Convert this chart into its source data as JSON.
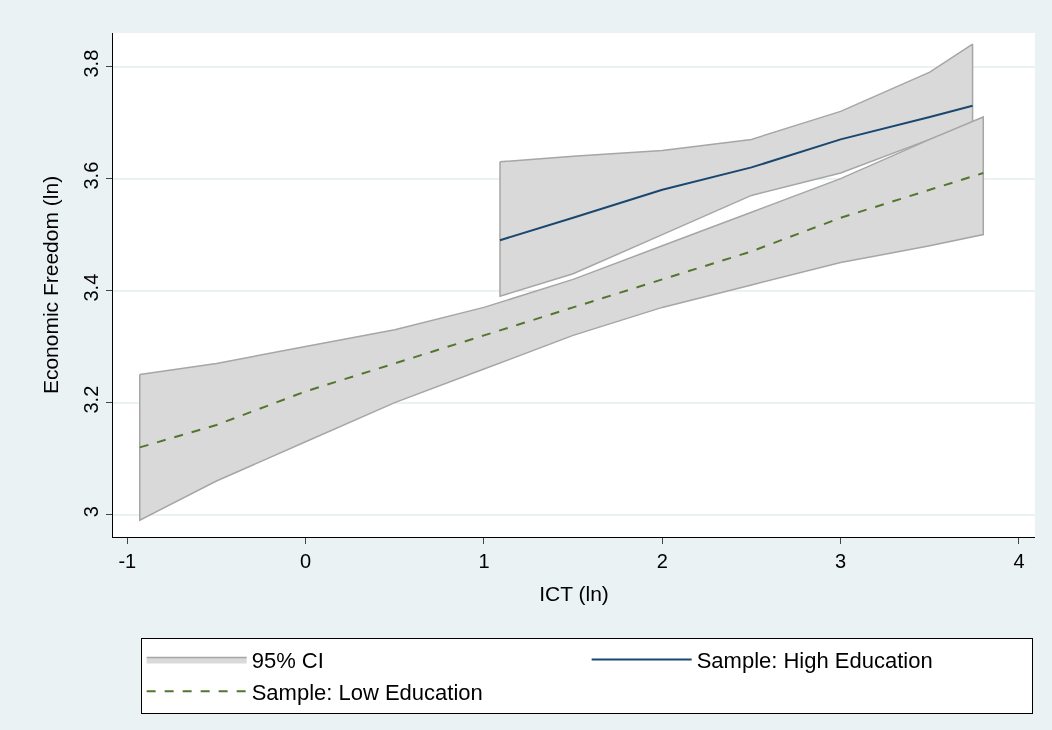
{
  "chart_data": {
    "type": "line",
    "xlabel": "ICT (ln)",
    "ylabel": "Economic Freedom (ln)",
    "xlim": [
      -1.08,
      4.09
    ],
    "ylim": [
      2.96,
      3.86
    ],
    "xticks": [
      -1,
      0,
      1,
      2,
      3,
      4
    ],
    "yticks": [
      3,
      3.2,
      3.4,
      3.6,
      3.8
    ],
    "grid": "y",
    "legend": "bottom",
    "annotations": [
      "95% CI"
    ],
    "series": [
      {
        "name": "Sample: High Education",
        "color": "#1a476f",
        "line_style": "solid",
        "x": [
          1.09,
          1.5,
          2,
          2.5,
          3,
          3.5,
          3.74
        ],
        "values": [
          3.49,
          3.53,
          3.58,
          3.62,
          3.67,
          3.71,
          3.73
        ],
        "lower": [
          3.39,
          3.43,
          3.5,
          3.57,
          3.61,
          3.67,
          3.7
        ],
        "upper": [
          3.63,
          3.64,
          3.65,
          3.67,
          3.72,
          3.79,
          3.84
        ]
      },
      {
        "name": "Sample: Low Education",
        "color": "#55752f",
        "line_style": "dashed",
        "x": [
          -0.93,
          -0.5,
          0,
          0.5,
          1,
          1.5,
          2,
          2.5,
          3,
          3.5,
          3.8
        ],
        "values": [
          3.12,
          3.16,
          3.22,
          3.27,
          3.32,
          3.37,
          3.42,
          3.47,
          3.53,
          3.58,
          3.61
        ],
        "lower": [
          2.99,
          3.06,
          3.13,
          3.2,
          3.26,
          3.32,
          3.37,
          3.41,
          3.45,
          3.48,
          3.5
        ],
        "upper": [
          3.25,
          3.27,
          3.3,
          3.33,
          3.37,
          3.42,
          3.48,
          3.54,
          3.6,
          3.67,
          3.71
        ]
      }
    ]
  }
}
